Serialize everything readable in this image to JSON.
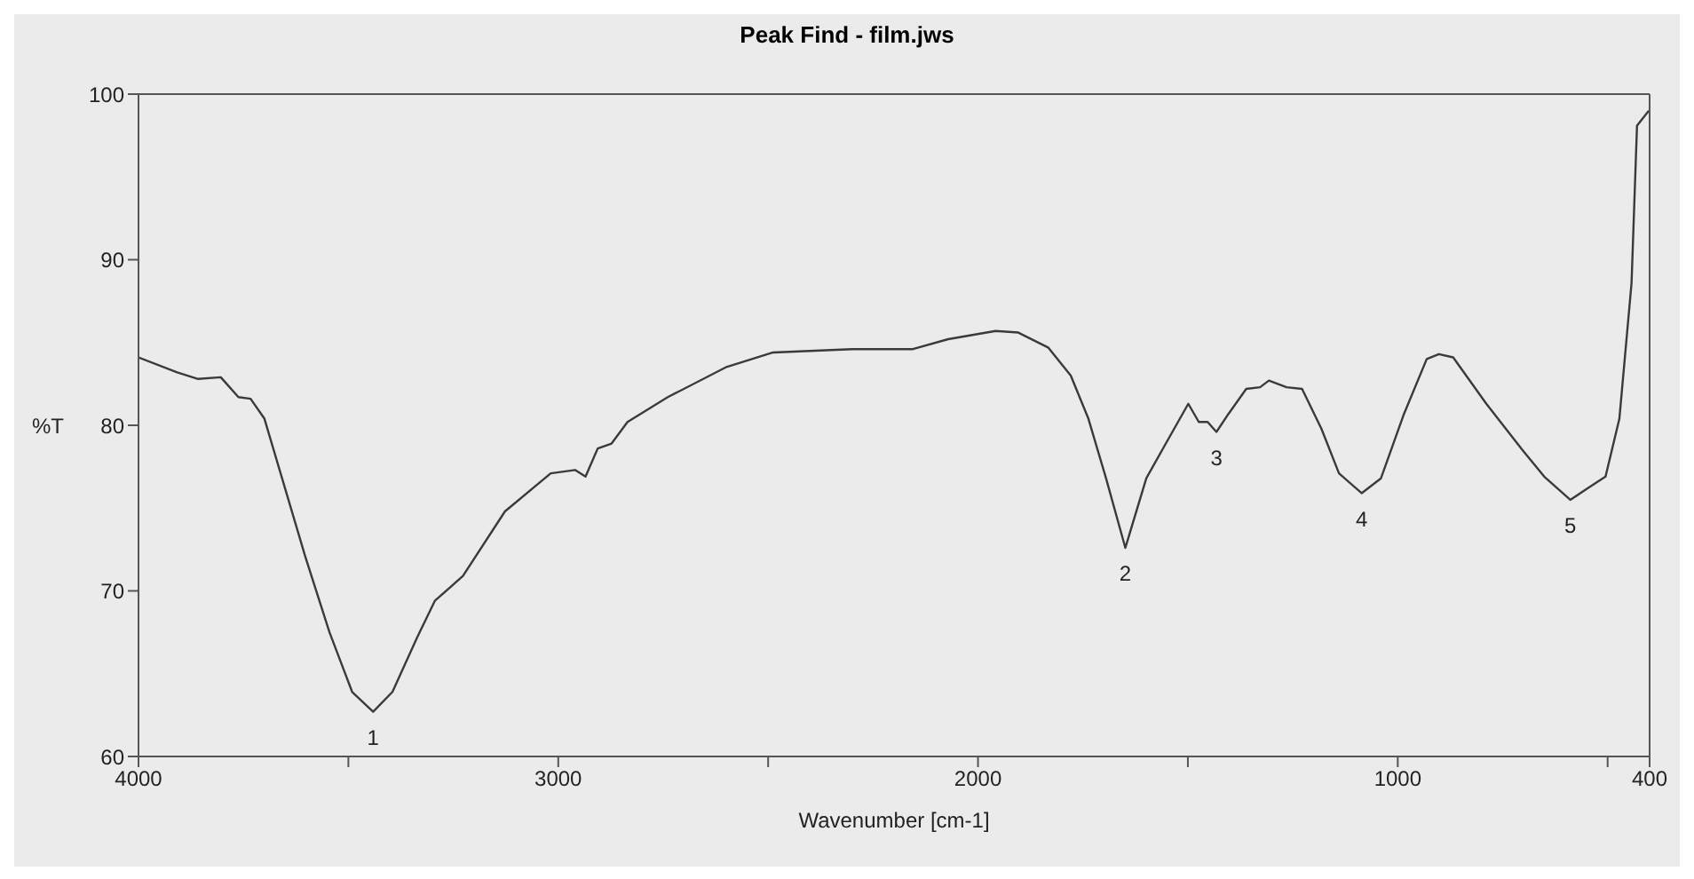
{
  "chart_data": {
    "type": "line",
    "title": "Peak Find - film.jws",
    "xlabel": "Wavenumber [cm-1]",
    "ylabel": "%T",
    "xlim": [
      4000,
      400
    ],
    "xticks": [
      4000,
      {
        "value": 3500,
        "label": null
      },
      3000,
      {
        "value": 2500,
        "label": null
      },
      2000,
      {
        "value": 1500,
        "label": null
      },
      1000,
      {
        "value": 500,
        "label": null
      },
      400
    ],
    "ylim": [
      60,
      100
    ],
    "yticks": [
      60,
      70,
      80,
      90,
      100
    ],
    "grid": false,
    "marker": "none",
    "line_style": "solid",
    "series": [
      {
        "color": "#3a3a3a",
        "x": [
          4000,
          3908,
          3858,
          3804,
          3762,
          3733,
          3700,
          3658,
          3603,
          3545,
          3491,
          3441,
          3395,
          3336,
          3294,
          3227,
          3127,
          3018,
          2960,
          2935,
          2906,
          2873,
          2835,
          2739,
          2601,
          2488,
          2300,
          2155,
          2071,
          1958,
          1904,
          1833,
          1779,
          1737,
          1695,
          1649,
          1599,
          1557,
          1499,
          1474,
          1453,
          1432,
          1403,
          1361,
          1328,
          1307,
          1265,
          1228,
          1182,
          1140,
          1086,
          1040,
          985,
          931,
          902,
          868,
          789,
          706,
          651,
          589,
          547,
          505,
          472,
          443,
          430,
          402
        ],
        "values": [
          84.1,
          83.2,
          82.8,
          82.9,
          81.7,
          81.6,
          80.4,
          76.8,
          72.1,
          67.5,
          63.9,
          62.7,
          63.9,
          67.2,
          69.4,
          70.9,
          74.8,
          77.1,
          77.3,
          76.9,
          78.6,
          78.9,
          80.2,
          81.7,
          83.5,
          84.4,
          84.6,
          84.6,
          85.2,
          85.7,
          85.6,
          84.7,
          83.0,
          80.4,
          76.8,
          72.6,
          76.8,
          78.7,
          81.3,
          80.2,
          80.2,
          79.6,
          80.7,
          82.2,
          82.3,
          82.7,
          82.3,
          82.2,
          79.8,
          77.1,
          75.9,
          76.8,
          80.7,
          84.0,
          84.3,
          84.1,
          81.3,
          78.6,
          76.9,
          75.5,
          76.2,
          76.9,
          80.4,
          88.6,
          98.1,
          99.0
        ]
      }
    ],
    "annotations": [
      {
        "text": "1",
        "x": 3441,
        "y": 62.7
      },
      {
        "text": "2",
        "x": 1649,
        "y": 72.6
      },
      {
        "text": "3",
        "x": 1432,
        "y": 79.6
      },
      {
        "text": "4",
        "x": 1086,
        "y": 75.9
      },
      {
        "text": "5",
        "x": 589,
        "y": 75.5
      }
    ]
  }
}
